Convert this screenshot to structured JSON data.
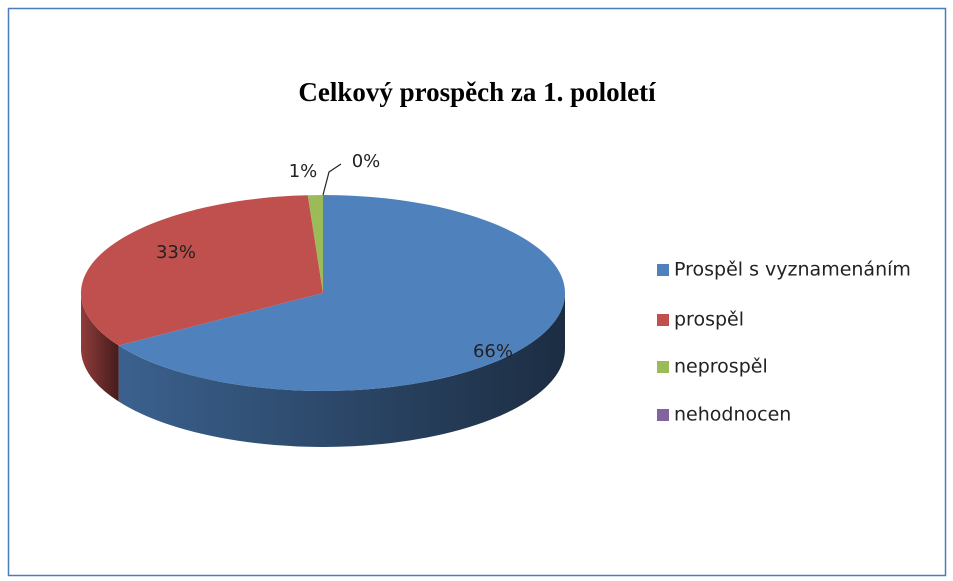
{
  "chart_data": {
    "type": "pie3d",
    "title": "Celkový prospěch za 1. pololetí",
    "categories": [
      "Prospěl s vyznamenáním",
      "prospěl",
      "neprospěl",
      "nehodnocen"
    ],
    "values": [
      66,
      33,
      1,
      0
    ],
    "value_labels": [
      "66%",
      "33%",
      "1%",
      "0%"
    ],
    "colors": [
      "#4f81bd",
      "#c0504d",
      "#9bbb59",
      "#8064a2"
    ],
    "legend": "right"
  }
}
